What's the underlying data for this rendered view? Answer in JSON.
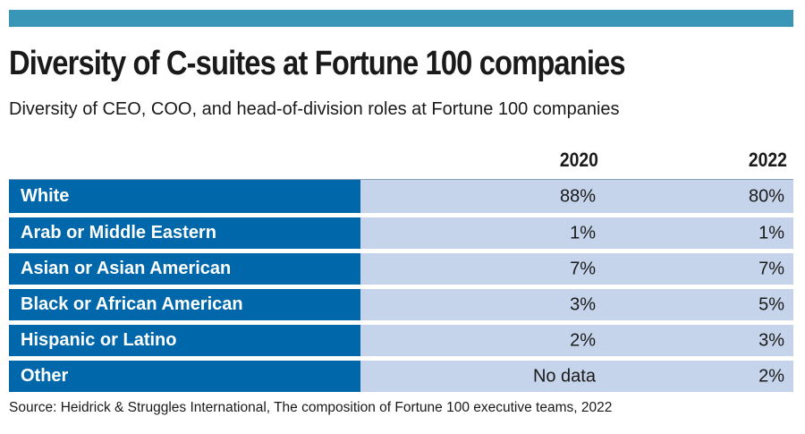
{
  "header": {
    "title": "Diversity of C-suites at Fortune 100 companies",
    "subtitle": "Diversity of CEO, COO, and head-of-division roles at Fortune 100 companies"
  },
  "colors": {
    "top_bar": "#3a96b7",
    "label_column": "#0067ab",
    "value_cells": "#c5d4ea"
  },
  "chart_data": {
    "type": "table",
    "title": "Diversity of C-suites at Fortune 100 companies",
    "subtitle": "Diversity of CEO, COO, and head-of-division roles at Fortune 100 companies",
    "columns": [
      "",
      "2020",
      "2022"
    ],
    "rows": [
      {
        "label": "White",
        "v2020": "88%",
        "v2022": "80%"
      },
      {
        "label": "Arab or Middle Eastern",
        "v2020": "1%",
        "v2022": "1%"
      },
      {
        "label": "Asian or Asian American",
        "v2020": "7%",
        "v2022": "7%"
      },
      {
        "label": "Black or African American",
        "v2020": "3%",
        "v2022": "5%"
      },
      {
        "label": "Hispanic or Latino",
        "v2020": "2%",
        "v2022": "3%"
      },
      {
        "label": "Other",
        "v2020": "No data",
        "v2022": "2%"
      }
    ],
    "source": "Source: Heidrick & Struggles International, The composition of Fortune 100 executive teams, 2022"
  }
}
